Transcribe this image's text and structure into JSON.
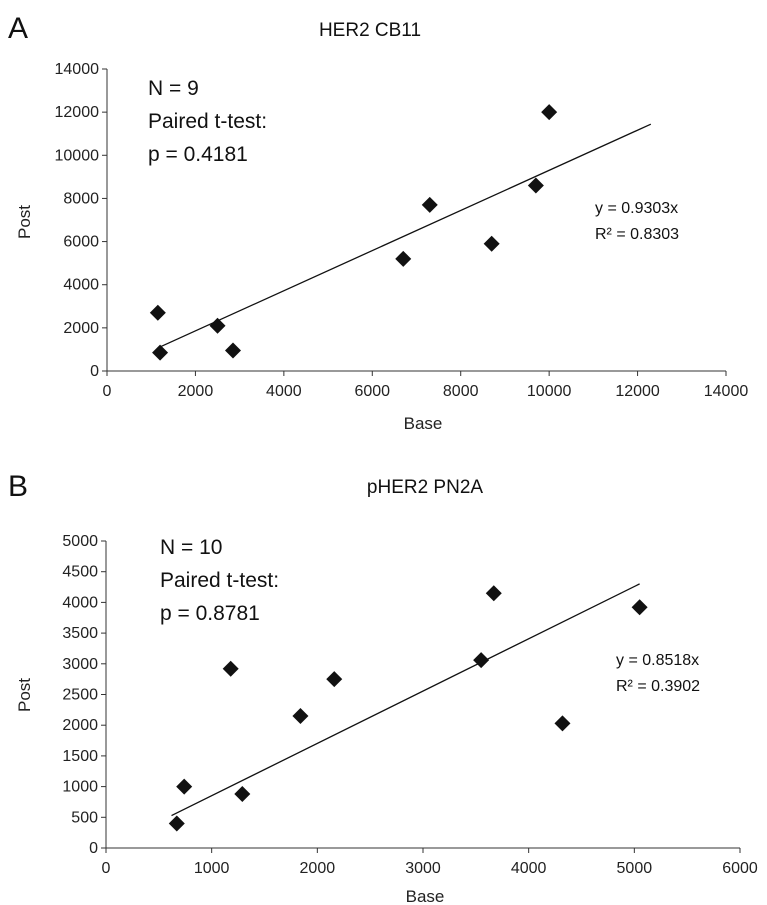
{
  "chart_data": [
    {
      "type": "scatter",
      "panel_label": "A",
      "title": "HER2 CB11",
      "xlabel": "Base",
      "ylabel": "Post",
      "xlim": [
        0,
        14000
      ],
      "ylim": [
        0,
        14000
      ],
      "xticks": [
        0,
        2000,
        4000,
        6000,
        8000,
        10000,
        12000,
        14000
      ],
      "yticks": [
        0,
        2000,
        4000,
        6000,
        8000,
        10000,
        12000,
        14000
      ],
      "xtick_labels": [
        "0",
        "2000",
        "4000",
        "6000",
        "8000",
        "10000",
        "12000",
        "14000"
      ],
      "ytick_labels": [
        "0",
        "2000",
        "4000",
        "6000",
        "8000",
        "10000",
        "12000",
        "14000"
      ],
      "marker": "diamond",
      "points": [
        {
          "x": 1150,
          "y": 2700
        },
        {
          "x": 1200,
          "y": 850
        },
        {
          "x": 2500,
          "y": 2100
        },
        {
          "x": 2850,
          "y": 950
        },
        {
          "x": 6700,
          "y": 5200
        },
        {
          "x": 7300,
          "y": 7700
        },
        {
          "x": 8700,
          "y": 5900
        },
        {
          "x": 9700,
          "y": 8600
        },
        {
          "x": 10000,
          "y": 12000
        }
      ],
      "trendline": {
        "slope": 0.9303,
        "x_start": 1150,
        "x_end": 12300
      },
      "annotations": {
        "n": "N = 9",
        "test": "Paired t-test:",
        "p": "p = 0.4181",
        "equation": "y = 0.9303x",
        "r2": "R² = 0.8303"
      }
    },
    {
      "type": "scatter",
      "panel_label": "B",
      "title": "pHER2 PN2A",
      "xlabel": "Base",
      "ylabel": "Post",
      "xlim": [
        0,
        6000
      ],
      "ylim": [
        0,
        5000
      ],
      "xticks": [
        0,
        1000,
        2000,
        3000,
        4000,
        5000,
        6000
      ],
      "yticks": [
        0,
        500,
        1000,
        1500,
        2000,
        2500,
        3000,
        3500,
        4000,
        4500,
        5000
      ],
      "xtick_labels": [
        "0",
        "1000",
        "2000",
        "3000",
        "4000",
        "5000",
        "6000"
      ],
      "ytick_labels": [
        "0",
        "500",
        "1000",
        "1500",
        "2000",
        "2500",
        "3000",
        "3500",
        "4000",
        "4500",
        "5000"
      ],
      "marker": "diamond",
      "points": [
        {
          "x": 670,
          "y": 400
        },
        {
          "x": 740,
          "y": 1000
        },
        {
          "x": 1180,
          "y": 2920
        },
        {
          "x": 1290,
          "y": 880
        },
        {
          "x": 1840,
          "y": 2150
        },
        {
          "x": 2160,
          "y": 2750
        },
        {
          "x": 3550,
          "y": 3060
        },
        {
          "x": 3670,
          "y": 4150
        },
        {
          "x": 4320,
          "y": 2030
        },
        {
          "x": 5050,
          "y": 3920
        }
      ],
      "trendline": {
        "slope": 0.8518,
        "x_start": 620,
        "x_end": 5050
      },
      "annotations": {
        "n": "N = 10",
        "test": "Paired t-test:",
        "p": "p = 0.8781",
        "equation": "y = 0.8518x",
        "r2": "R² = 0.3902"
      }
    }
  ]
}
